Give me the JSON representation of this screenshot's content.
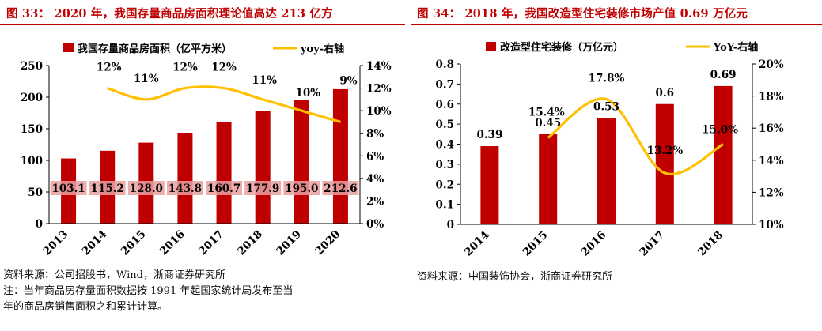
{
  "left": {
    "figure_title": "图 33： 2020 年，我国存量商品房面积理论值高达 213 亿方",
    "source_lines": [
      "资料来源：公司招股书，Wind，浙商证券研究所",
      "注：当年商品房存量面积数据按 1991 年起国家统计局发布至当",
      "年的商品房销售面积之和累计计算。"
    ],
    "colors": {
      "bar": "#c00000",
      "line": "#ffc000",
      "title": "#c00000"
    },
    "chart_data": {
      "type": "bar",
      "title": "",
      "categories": [
        "2013",
        "2014",
        "2015",
        "2016",
        "2017",
        "2018",
        "2019",
        "2020"
      ],
      "series": [
        {
          "name": "我国存量商品房面积（亿平方米）",
          "axis": "left",
          "kind": "bar",
          "values": [
            103.1,
            115.2,
            128.0,
            143.8,
            160.7,
            177.9,
            195.0,
            212.6
          ],
          "labels": [
            "103.1",
            "115.2",
            "128.0",
            "143.8",
            "160.7",
            "177.9",
            "195.0",
            "212.6"
          ]
        },
        {
          "name": "yoy-右轴",
          "axis": "right",
          "kind": "line",
          "values": [
            null,
            12,
            11,
            12,
            12,
            11,
            10,
            9
          ],
          "labels": [
            "",
            "12%",
            "11%",
            "12%",
            "12%",
            "11%",
            "10%",
            "9%"
          ]
        }
      ],
      "ylim": [
        0,
        250
      ],
      "yticks": [
        "0",
        "50",
        "100",
        "150",
        "200",
        "250"
      ],
      "y2lim": [
        0,
        14
      ],
      "y2ticks": [
        "0%",
        "2%",
        "4%",
        "6%",
        "8%",
        "10%",
        "12%",
        "14%"
      ],
      "legend_position": "top"
    }
  },
  "right": {
    "figure_title": "图 34： 2018 年，我国改造型住宅装修市场产值 0.69 万亿元",
    "source_lines": [
      "资料来源：中国装饰协会，浙商证券研究所"
    ],
    "colors": {
      "bar": "#c00000",
      "line": "#ffc000",
      "title": "#c00000"
    },
    "chart_data": {
      "type": "bar",
      "title": "",
      "categories": [
        "2014",
        "2015",
        "2016",
        "2017",
        "2018"
      ],
      "series": [
        {
          "name": "改造型住宅装修（万亿元）",
          "axis": "left",
          "kind": "bar",
          "values": [
            0.39,
            0.45,
            0.53,
            0.6,
            0.69
          ],
          "labels": [
            "0.39",
            "0.45",
            "0.53",
            "0.6",
            "0.69"
          ]
        },
        {
          "name": "YoY-右轴",
          "axis": "right",
          "kind": "line",
          "values": [
            null,
            15.4,
            17.8,
            13.2,
            15.0
          ],
          "labels": [
            "",
            "15.4%",
            "17.8%",
            "13.2%",
            "15.0%"
          ]
        }
      ],
      "ylim": [
        0,
        0.8
      ],
      "yticks": [
        "0",
        "0.1",
        "0.2",
        "0.3",
        "0.4",
        "0.5",
        "0.6",
        "0.7",
        "0.8"
      ],
      "y2lim": [
        10,
        20
      ],
      "y2ticks": [
        "10%",
        "12%",
        "14%",
        "16%",
        "18%",
        "20%"
      ],
      "legend_position": "top"
    }
  }
}
